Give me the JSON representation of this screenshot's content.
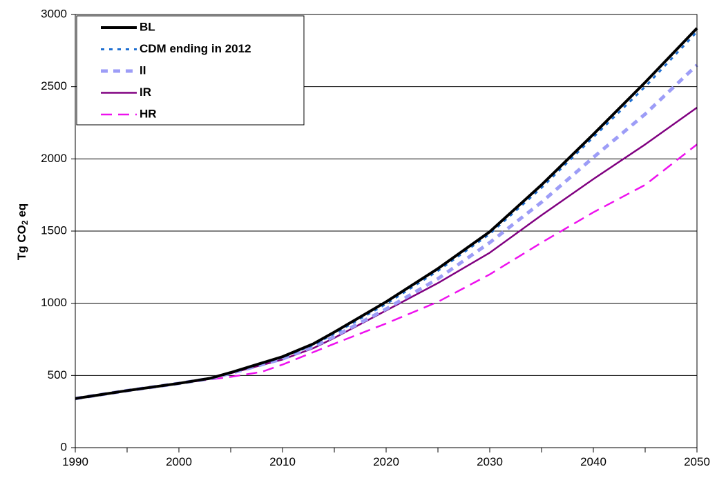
{
  "chart_data": {
    "type": "line",
    "title": "",
    "xlabel": "",
    "ylabel": "Tg CO₂ eq",
    "xlim": [
      1990,
      2050
    ],
    "ylim": [
      0,
      3000
    ],
    "x_ticks": [
      1990,
      2000,
      2010,
      2020,
      2030,
      2040,
      2050
    ],
    "x_minor_ticks": [
      1995,
      2005,
      2015,
      2025,
      2035,
      2045
    ],
    "y_ticks": [
      0,
      500,
      1000,
      1500,
      2000,
      2500,
      3000
    ],
    "grid": "horizontal",
    "legend_position": "top-left",
    "series": [
      {
        "name": "BL",
        "color": "#000000",
        "style": "solid-thick",
        "points": [
          [
            1990,
            340
          ],
          [
            1995,
            395
          ],
          [
            2000,
            445
          ],
          [
            2003,
            480
          ],
          [
            2005,
            520
          ],
          [
            2010,
            630
          ],
          [
            2013,
            720
          ],
          [
            2015,
            800
          ],
          [
            2020,
            1010
          ],
          [
            2025,
            1240
          ],
          [
            2030,
            1495
          ],
          [
            2035,
            1820
          ],
          [
            2040,
            2170
          ],
          [
            2045,
            2530
          ],
          [
            2050,
            2905
          ]
        ]
      },
      {
        "name": "CDM ending in 2012",
        "color": "#1f6fd1",
        "style": "dotted",
        "points": [
          [
            1990,
            340
          ],
          [
            1995,
            395
          ],
          [
            2000,
            445
          ],
          [
            2003,
            480
          ],
          [
            2005,
            520
          ],
          [
            2010,
            625
          ],
          [
            2013,
            712
          ],
          [
            2015,
            790
          ],
          [
            2020,
            995
          ],
          [
            2025,
            1225
          ],
          [
            2030,
            1480
          ],
          [
            2035,
            1800
          ],
          [
            2040,
            2150
          ],
          [
            2045,
            2500
          ],
          [
            2050,
            2880
          ]
        ]
      },
      {
        "name": "II",
        "color": "#9d9df7",
        "style": "dashed-thick",
        "points": [
          [
            1990,
            340
          ],
          [
            1995,
            395
          ],
          [
            2000,
            445
          ],
          [
            2003,
            478
          ],
          [
            2005,
            515
          ],
          [
            2010,
            615
          ],
          [
            2013,
            700
          ],
          [
            2015,
            770
          ],
          [
            2020,
            960
          ],
          [
            2025,
            1170
          ],
          [
            2030,
            1420
          ],
          [
            2035,
            1700
          ],
          [
            2040,
            2010
          ],
          [
            2045,
            2310
          ],
          [
            2050,
            2650
          ]
        ]
      },
      {
        "name": "IR",
        "color": "#800080",
        "style": "solid",
        "points": [
          [
            1990,
            340
          ],
          [
            1995,
            395
          ],
          [
            2000,
            445
          ],
          [
            2003,
            478
          ],
          [
            2005,
            515
          ],
          [
            2010,
            610
          ],
          [
            2013,
            690
          ],
          [
            2015,
            760
          ],
          [
            2020,
            950
          ],
          [
            2025,
            1140
          ],
          [
            2030,
            1350
          ],
          [
            2035,
            1610
          ],
          [
            2040,
            1860
          ],
          [
            2045,
            2100
          ],
          [
            2050,
            2355
          ]
        ]
      },
      {
        "name": "HR",
        "color": "#ee11ee",
        "style": "dashed",
        "points": [
          [
            1990,
            340
          ],
          [
            1995,
            395
          ],
          [
            2000,
            445
          ],
          [
            2003,
            472
          ],
          [
            2005,
            490
          ],
          [
            2008,
            525
          ],
          [
            2010,
            575
          ],
          [
            2015,
            720
          ],
          [
            2020,
            860
          ],
          [
            2025,
            1010
          ],
          [
            2030,
            1200
          ],
          [
            2035,
            1420
          ],
          [
            2040,
            1630
          ],
          [
            2045,
            1820
          ],
          [
            2050,
            2100
          ]
        ]
      }
    ]
  }
}
